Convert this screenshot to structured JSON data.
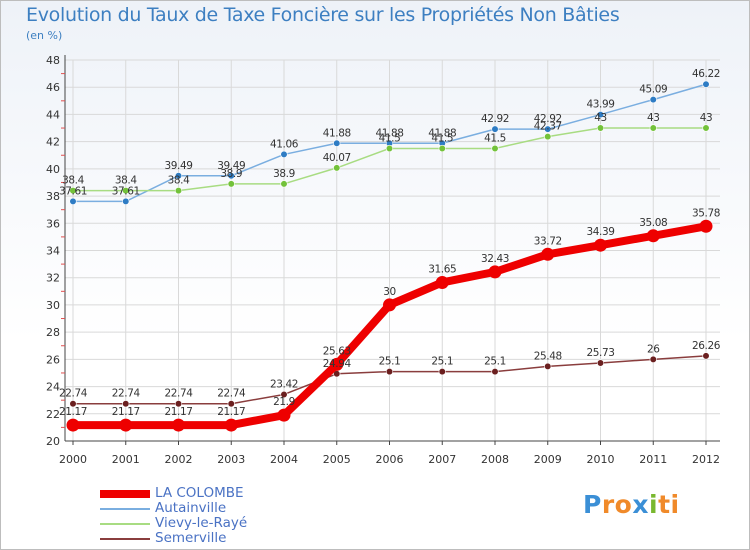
{
  "header": {
    "title": "Evolution du Taux de Taxe Foncière sur les Propriétés Non Bâties",
    "unit": "(en %)"
  },
  "logo": {
    "text": "Proxiti",
    "letters": [
      "P",
      "r",
      "o",
      "x",
      "i",
      "ti"
    ]
  },
  "colors": {
    "title": "#3d7fc1",
    "background_top": "#eef2f8",
    "axis": "#444444",
    "grid": "#d9d9d9"
  },
  "chart_data": {
    "type": "line",
    "title": "Evolution du Taux de Taxe Foncière sur les Propriétés Non Bâties",
    "xlabel": "",
    "ylabel": "(en %)",
    "x": [
      "2000",
      "2001",
      "2002",
      "2003",
      "2004",
      "2005",
      "2006",
      "2007",
      "2008",
      "2009",
      "2010",
      "2011",
      "2012"
    ],
    "ylim": [
      20,
      48
    ],
    "yticks": [
      20,
      22,
      24,
      26,
      28,
      30,
      32,
      34,
      36,
      38,
      40,
      42,
      44,
      46,
      48
    ],
    "grid": true,
    "legend_position": "bottom-left",
    "series": [
      {
        "name": "LA COLOMBE",
        "color": "#ee0000",
        "marker_color": "#ee0000",
        "emphasis": true,
        "values": [
          21.17,
          21.17,
          21.17,
          21.17,
          21.9,
          25.63,
          30,
          31.65,
          32.43,
          33.72,
          34.39,
          35.08,
          35.78
        ],
        "labels": [
          "21.17",
          "21.17",
          "21.17",
          "21.17",
          "21.9",
          "25.63",
          "30",
          "31.65",
          "32.43",
          "33.72",
          "34.39",
          "35.08",
          "35.78"
        ]
      },
      {
        "name": "Autainville",
        "color": "#7aaee0",
        "marker_color": "#2e7cc4",
        "emphasis": false,
        "values": [
          37.61,
          37.61,
          39.49,
          39.49,
          41.06,
          41.88,
          41.88,
          41.88,
          42.92,
          42.92,
          43.99,
          45.09,
          46.22
        ],
        "labels": [
          "37.61",
          "37.61",
          "39.49",
          "39.49",
          "41.06",
          "41.88",
          "41.88",
          "41.88",
          "42.92",
          "42.92",
          "43.99",
          "45.09",
          "46.22"
        ]
      },
      {
        "name": "Vievy-le-Rayé",
        "color": "#a8dc82",
        "marker_color": "#73c23a",
        "emphasis": false,
        "values": [
          38.4,
          38.4,
          38.4,
          38.9,
          38.9,
          40.07,
          41.5,
          41.5,
          41.5,
          42.37,
          43,
          43,
          43
        ],
        "labels": [
          "38.4",
          "38.4",
          "38.4",
          "38.9",
          "38.9",
          "40.07",
          "41.5",
          "41.5",
          "41.5",
          "42.37",
          "43",
          "43",
          "43"
        ]
      },
      {
        "name": "Semerville",
        "color": "#8a3d3d",
        "marker_color": "#6b1f1f",
        "emphasis": false,
        "values": [
          22.74,
          22.74,
          22.74,
          22.74,
          23.42,
          24.94,
          25.1,
          25.1,
          25.1,
          25.48,
          25.73,
          26,
          26.26
        ],
        "labels": [
          "22.74",
          "22.74",
          "22.74",
          "22.74",
          "23.42",
          "24.94",
          "25.1",
          "25.1",
          "25.1",
          "25.48",
          "25.73",
          "26",
          "26.26"
        ]
      }
    ]
  }
}
